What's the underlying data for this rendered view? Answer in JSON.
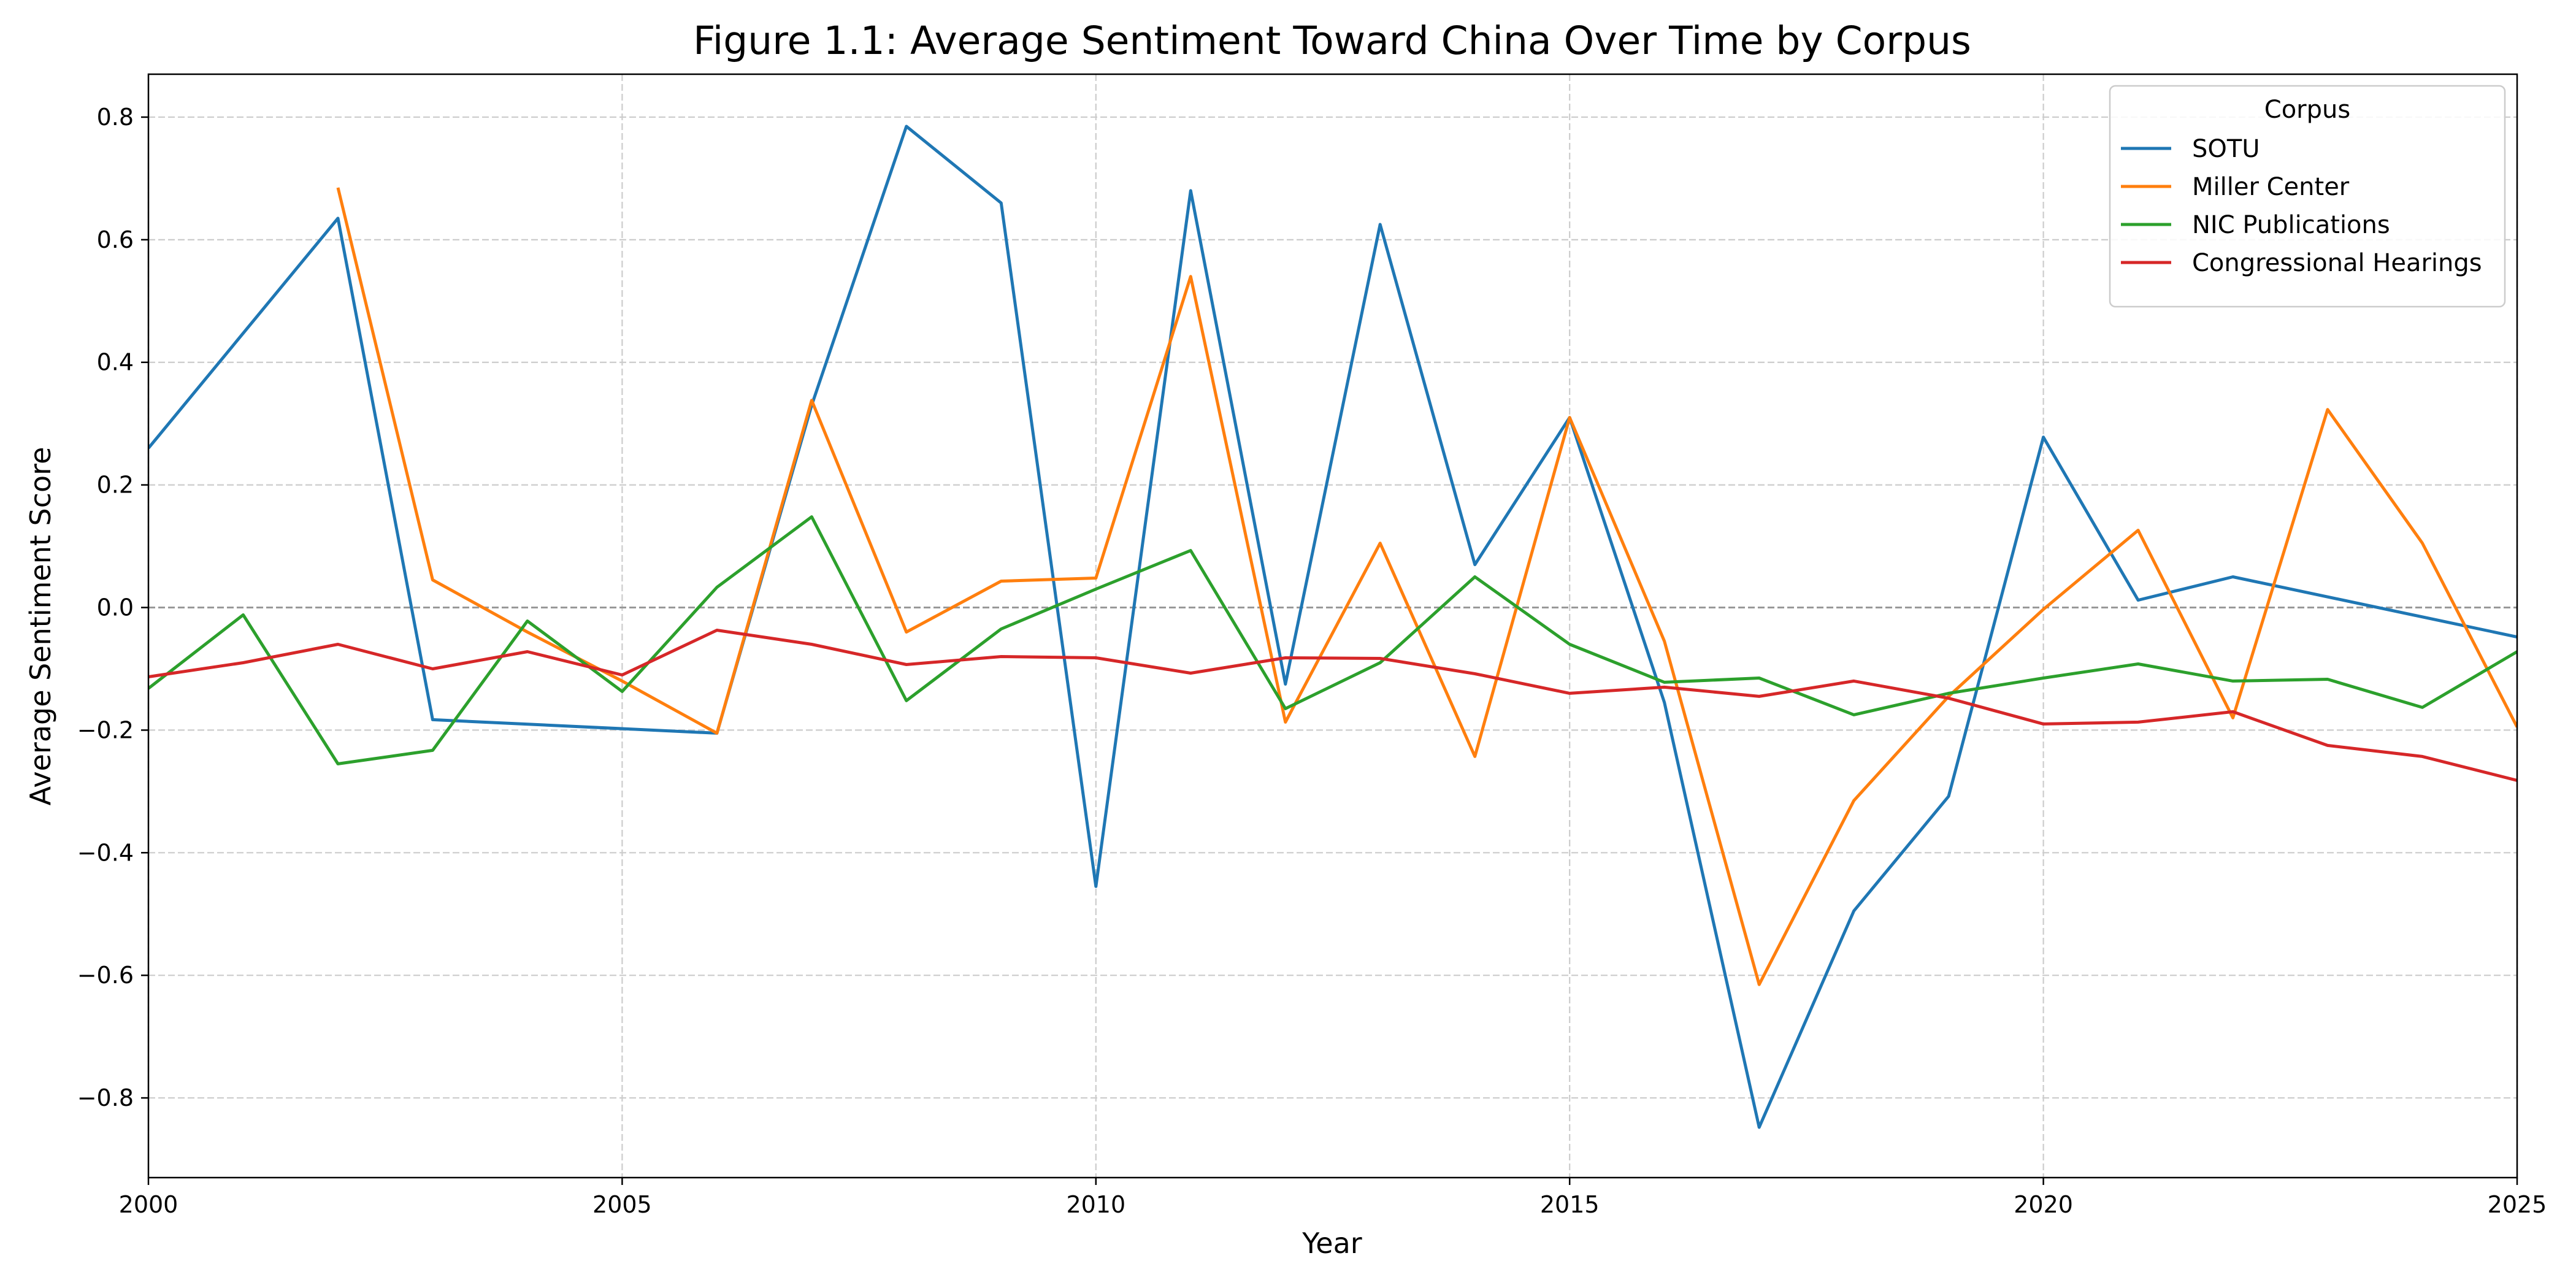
{
  "chart_data": {
    "type": "line",
    "title": "Figure 1.1: Average Sentiment Toward China Over Time by Corpus",
    "xlabel": "Year",
    "ylabel": "Average Sentiment Score",
    "xlim": [
      2000,
      2025
    ],
    "ylim": [
      -0.93,
      0.87
    ],
    "x_ticks": [
      2000,
      2005,
      2010,
      2015,
      2020,
      2025
    ],
    "y_ticks": [
      -0.8,
      -0.6,
      -0.4,
      -0.2,
      0.0,
      0.2,
      0.4,
      0.6,
      0.8
    ],
    "x_tick_labels": [
      "2000",
      "2005",
      "2010",
      "2015",
      "2020",
      "2025"
    ],
    "y_tick_labels": [
      "−0.8",
      "−0.6",
      "−0.4",
      "−0.2",
      "0.0",
      "0.2",
      "0.4",
      "0.6",
      "0.8"
    ],
    "grid": true,
    "zero_reference_line": true,
    "legend": {
      "title": "Corpus",
      "position": "top-right"
    },
    "series": [
      {
        "name": "SOTU",
        "color": "#1f77b4",
        "points": [
          [
            2000,
            0.26
          ],
          [
            2002,
            0.635
          ],
          [
            2003,
            -0.183
          ],
          [
            2006,
            -0.205
          ],
          [
            2007,
            0.33
          ],
          [
            2008,
            0.785
          ],
          [
            2009,
            0.66
          ],
          [
            2010,
            -0.455
          ],
          [
            2011,
            0.68
          ],
          [
            2012,
            -0.125
          ],
          [
            2013,
            0.625
          ],
          [
            2014,
            0.07
          ],
          [
            2015,
            0.31
          ],
          [
            2016,
            -0.155
          ],
          [
            2017,
            -0.848
          ],
          [
            2018,
            -0.495
          ],
          [
            2019,
            -0.308
          ],
          [
            2020,
            0.278
          ],
          [
            2021,
            0.012
          ],
          [
            2022,
            0.05
          ],
          [
            2025,
            -0.048
          ]
        ]
      },
      {
        "name": "Miller Center",
        "color": "#ff7f0e",
        "points": [
          [
            2002,
            0.685
          ],
          [
            2003,
            0.045
          ],
          [
            2004,
            -0.04
          ],
          [
            2005,
            -0.12
          ],
          [
            2006,
            -0.205
          ],
          [
            2007,
            0.338
          ],
          [
            2008,
            -0.04
          ],
          [
            2009,
            0.043
          ],
          [
            2010,
            0.048
          ],
          [
            2011,
            0.54
          ],
          [
            2012,
            -0.187
          ],
          [
            2013,
            0.105
          ],
          [
            2014,
            -0.243
          ],
          [
            2015,
            0.31
          ],
          [
            2016,
            -0.055
          ],
          [
            2017,
            -0.615
          ],
          [
            2018,
            -0.315
          ],
          [
            2019,
            -0.145
          ],
          [
            2020,
            -0.003
          ],
          [
            2021,
            0.126
          ],
          [
            2022,
            -0.18
          ],
          [
            2023,
            0.323
          ],
          [
            2024,
            0.105
          ],
          [
            2025,
            -0.195
          ]
        ]
      },
      {
        "name": "NIC Publications",
        "color": "#2ca02c",
        "points": [
          [
            2000,
            -0.132
          ],
          [
            2001,
            -0.012
          ],
          [
            2002,
            -0.255
          ],
          [
            2003,
            -0.233
          ],
          [
            2004,
            -0.022
          ],
          [
            2005,
            -0.137
          ],
          [
            2006,
            0.033
          ],
          [
            2007,
            0.148
          ],
          [
            2008,
            -0.152
          ],
          [
            2009,
            -0.035
          ],
          [
            2010,
            0.03
          ],
          [
            2011,
            0.093
          ],
          [
            2012,
            -0.165
          ],
          [
            2013,
            -0.09
          ],
          [
            2014,
            0.05
          ],
          [
            2015,
            -0.06
          ],
          [
            2016,
            -0.122
          ],
          [
            2017,
            -0.115
          ],
          [
            2018,
            -0.175
          ],
          [
            2019,
            -0.14
          ],
          [
            2020,
            -0.115
          ],
          [
            2021,
            -0.092
          ],
          [
            2022,
            -0.12
          ],
          [
            2023,
            -0.117
          ],
          [
            2024,
            -0.163
          ],
          [
            2025,
            -0.072
          ]
        ]
      },
      {
        "name": "Congressional Hearings",
        "color": "#d62728",
        "points": [
          [
            2000,
            -0.113
          ],
          [
            2001,
            -0.09
          ],
          [
            2002,
            -0.06
          ],
          [
            2003,
            -0.1
          ],
          [
            2004,
            -0.072
          ],
          [
            2005,
            -0.11
          ],
          [
            2006,
            -0.037
          ],
          [
            2007,
            -0.06
          ],
          [
            2008,
            -0.093
          ],
          [
            2009,
            -0.08
          ],
          [
            2010,
            -0.082
          ],
          [
            2011,
            -0.107
          ],
          [
            2012,
            -0.082
          ],
          [
            2013,
            -0.083
          ],
          [
            2014,
            -0.108
          ],
          [
            2015,
            -0.14
          ],
          [
            2016,
            -0.13
          ],
          [
            2017,
            -0.145
          ],
          [
            2018,
            -0.12
          ],
          [
            2019,
            -0.148
          ],
          [
            2020,
            -0.19
          ],
          [
            2021,
            -0.187
          ],
          [
            2022,
            -0.17
          ],
          [
            2023,
            -0.225
          ],
          [
            2024,
            -0.243
          ],
          [
            2025,
            -0.282
          ]
        ]
      }
    ]
  }
}
